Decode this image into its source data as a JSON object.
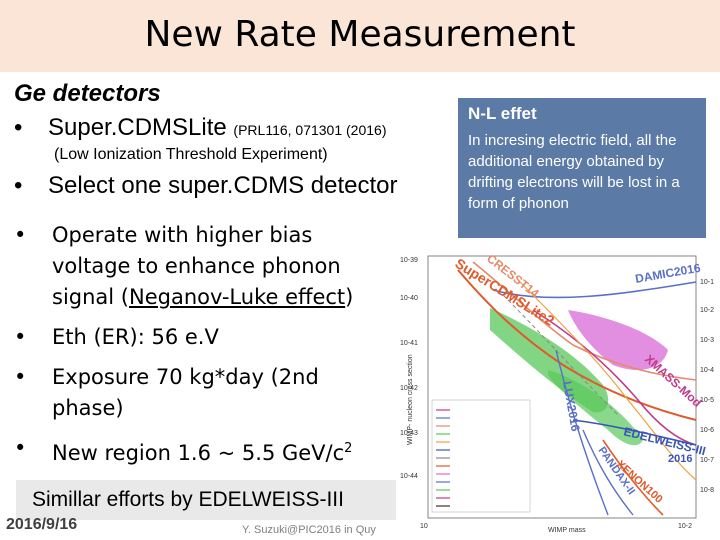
{
  "slide": {
    "title": "New Rate Measurement",
    "heading": "Ge detectors",
    "bullet1_main": "Super.CDMSLite",
    "bullet1_ref": "(PRL116, 071301 (2016)",
    "bullet1_sub": "(Low Ionization Threshold Experiment)",
    "bullet2": "Select one super.CDMS detector",
    "items": {
      "i1_a": "Operate with higher bias voltage to enhance phonon signal (",
      "i1_u": "Neganov-Luke effect",
      "i1_b": ")",
      "i2": "Eth (ER): 56 e.V",
      "i3": "Exposure 70 kg*day (2nd phase)",
      "i4": "New region 1.6 ~ 5.5 GeV/c",
      "i4_sup": "2"
    },
    "bullet_char": "•",
    "note_title": "N-L effet",
    "note_text": "In incresing electric field, all the additional energy obtained by drifting electrons will be lost in a form of phonon",
    "bottom_box": "Simillar efforts by EDELWEISS-III",
    "date": "2016/9/16",
    "footer": "Y. Suzuki@PIC2016 in Quy"
  },
  "plot": {
    "y_ticks": [
      "10-39",
      "10-40",
      "10-41",
      "10-42",
      "10-43",
      "10-44"
    ],
    "right_ticks": [
      "10-1",
      "10-2",
      "10-3",
      "10-4",
      "10-5",
      "10-6",
      "10-7",
      "10-8"
    ],
    "x_ticks": [
      "10",
      "10-2"
    ],
    "y_label": "WIMP- nucleon cross section",
    "x_label": "WIMP mass",
    "labels": {
      "supercdms": "SuperCDMSLite2",
      "cresst": "CRESST14",
      "damic": "DAMIC2016",
      "xmass": "XMASS-Mod",
      "lux": "LUX2016",
      "edelweiss": "EDELWEISS-III",
      "edel_year": "2016",
      "pandax": "PANDAX-II",
      "xenon": "XENON100"
    },
    "colors": {
      "supercdms": "#e05a2b",
      "cresst": "#e58a6a",
      "damic": "#5a6fc9",
      "xmass": "#c0398a",
      "lux": "#5a6fc9",
      "edelweiss": "#3a55b8",
      "pandax": "#5a6fc9",
      "xenon": "#e05a2b",
      "green": "#58c85a",
      "magenta": "#d86ad8",
      "note_box": "#5b7aa6",
      "title_bg": "#fbe5d6"
    }
  }
}
